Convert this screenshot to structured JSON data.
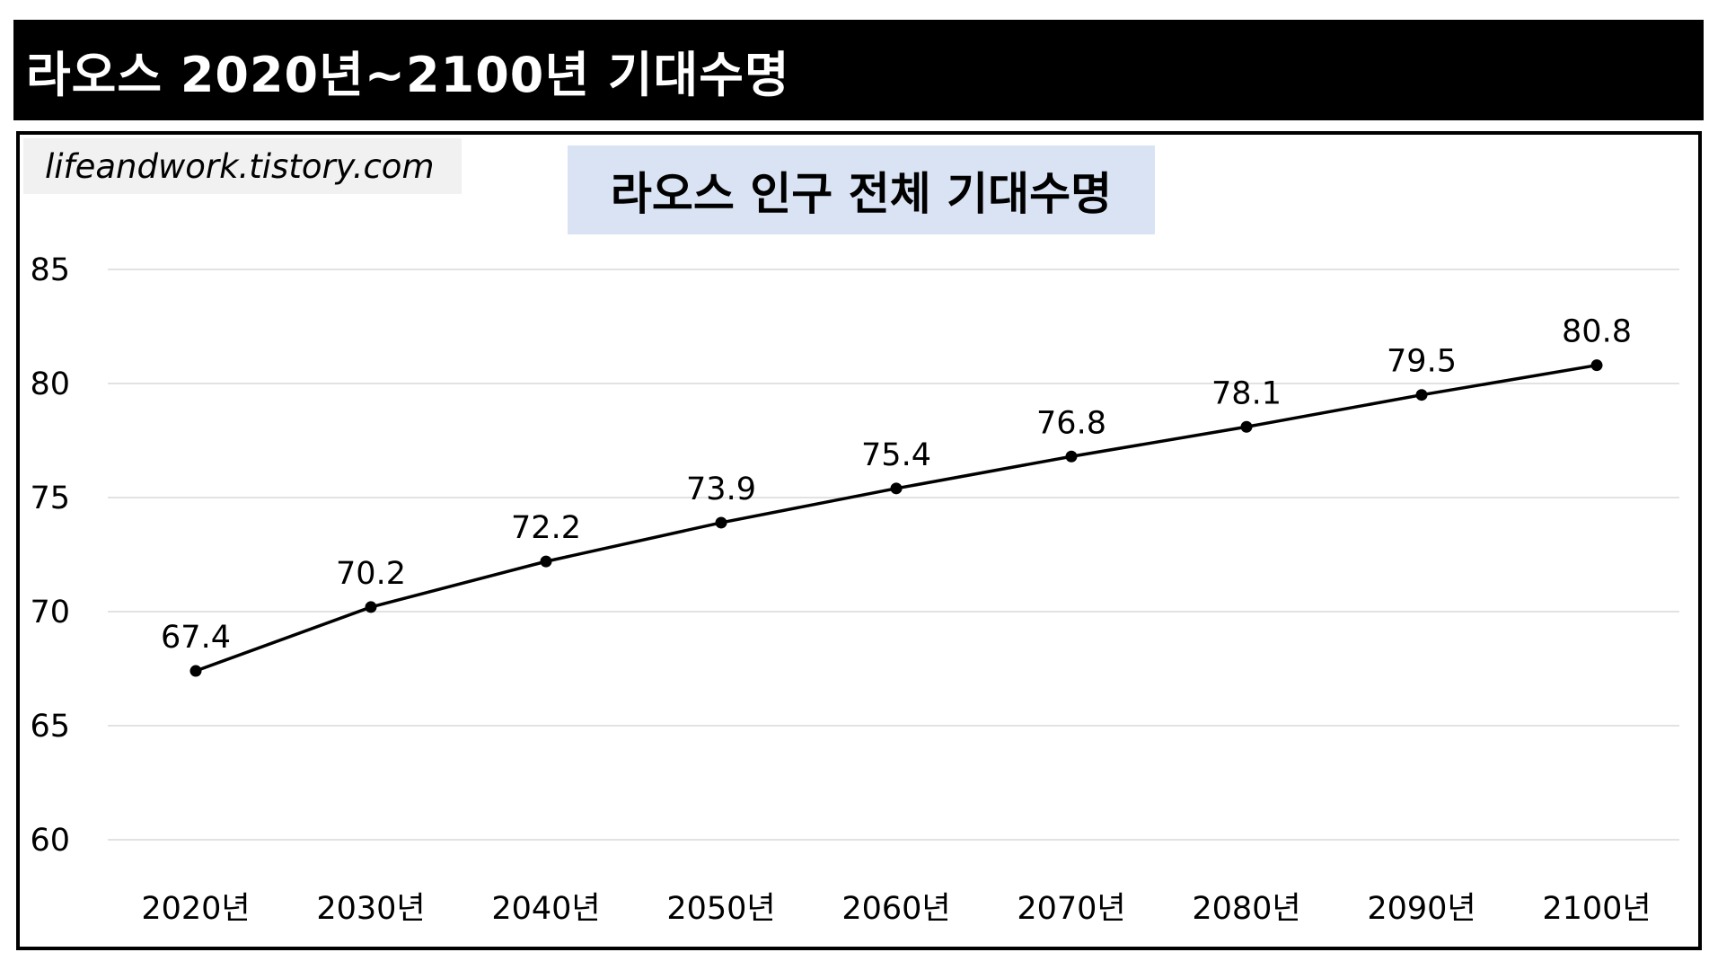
{
  "page_title": "라오스 2020년~2100년 기대수명",
  "watermark": "lifeandwork.tistory.com",
  "chart_data": {
    "type": "line",
    "title": "라오스 인구 전체 기대수명",
    "categories": [
      "2020년",
      "2030년",
      "2040년",
      "2050년",
      "2060년",
      "2070년",
      "2080년",
      "2090년",
      "2100년"
    ],
    "series": [
      {
        "values": [
          67.4,
          70.2,
          72.2,
          73.9,
          75.4,
          76.8,
          78.1,
          79.5,
          80.8
        ],
        "data_labels": [
          "67.4",
          "70.2",
          "72.2",
          "73.9",
          "75.4",
          "76.8",
          "78.1",
          "79.5",
          "80.8"
        ]
      }
    ],
    "y_ticks": [
      "60",
      "65",
      "70",
      "75",
      "80",
      "85"
    ],
    "ylim": [
      60,
      85
    ],
    "xlabel": "",
    "ylabel": "",
    "grid": true,
    "legend": "none",
    "colors": {
      "line": "#000000",
      "grid": "#d9d9d9",
      "title_background": "#dae3f3"
    }
  }
}
